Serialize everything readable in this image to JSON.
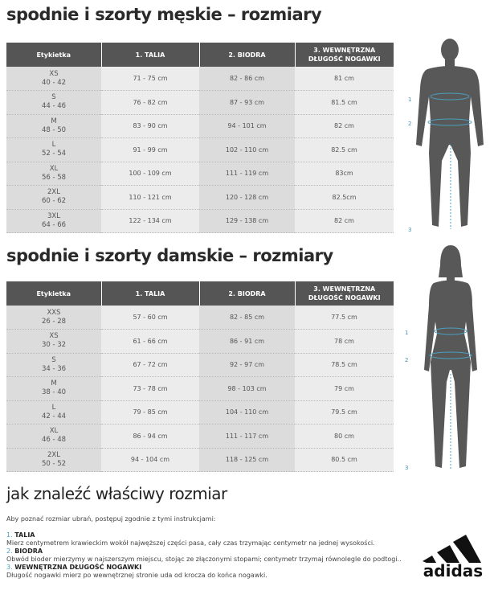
{
  "men": {
    "title": "spodnie i szorty męskie – rozmiary",
    "headers": [
      "Etykietka",
      "1. TALIA",
      "2. BIODRA",
      "3. WEWNĘTRZNA DŁUGOŚĆ NOGAWKI"
    ],
    "rows": [
      {
        "size": "XS",
        "eu": "40 - 42",
        "waist": "71 - 75 cm",
        "hips": "82 - 86 cm",
        "inseam": "81 cm"
      },
      {
        "size": "S",
        "eu": "44 - 46",
        "waist": "76 - 82 cm",
        "hips": "87 - 93 cm",
        "inseam": "81.5 cm"
      },
      {
        "size": "M",
        "eu": "48 - 50",
        "waist": "83 - 90 cm",
        "hips": "94 - 101 cm",
        "inseam": "82 cm"
      },
      {
        "size": "L",
        "eu": "52 - 54",
        "waist": "91 - 99 cm",
        "hips": "102 - 110 cm",
        "inseam": "82.5 cm"
      },
      {
        "size": "XL",
        "eu": "56 - 58",
        "waist": "100 - 109 cm",
        "hips": "111 - 119 cm",
        "inseam": "83cm"
      },
      {
        "size": "2XL",
        "eu": "60 - 62",
        "waist": "110 - 121 cm",
        "hips": "120 - 128 cm",
        "inseam": "82.5cm"
      },
      {
        "size": "3XL",
        "eu": "64 - 66",
        "waist": "122 - 134 cm",
        "hips": "129 - 138 cm",
        "inseam": "82 cm"
      }
    ]
  },
  "women": {
    "title": "spodnie i szorty damskie – rozmiary",
    "headers": [
      "Etykietka",
      "1. TALIA",
      "2. BIODRA",
      "3. WEWNĘTRZNA DŁUGOŚĆ NOGAWKI"
    ],
    "rows": [
      {
        "size": "XXS",
        "eu": "26 - 28",
        "waist": "57 - 60 cm",
        "hips": "82 - 85 cm",
        "inseam": "77.5 cm"
      },
      {
        "size": "XS",
        "eu": "30 - 32",
        "waist": "61 - 66 cm",
        "hips": "86 - 91 cm",
        "inseam": "78 cm"
      },
      {
        "size": "S",
        "eu": "34 - 36",
        "waist": "67 - 72 cm",
        "hips": "92 - 97 cm",
        "inseam": "78.5 cm"
      },
      {
        "size": "M",
        "eu": "38 - 40",
        "waist": "73 - 78 cm",
        "hips": "98 - 103 cm",
        "inseam": "79 cm"
      },
      {
        "size": "L",
        "eu": "42 - 44",
        "waist": "79 - 85 cm",
        "hips": "104 - 110 cm",
        "inseam": "79.5 cm"
      },
      {
        "size": "XL",
        "eu": "46 - 48",
        "waist": "86 - 94 cm",
        "hips": "111 - 117 cm",
        "inseam": "80 cm"
      },
      {
        "size": "2XL",
        "eu": "50 - 52",
        "waist": "94 - 104 cm",
        "hips": "118 - 125 cm",
        "inseam": "80.5 cm"
      }
    ]
  },
  "figure_labels": [
    "1",
    "2",
    "3"
  ],
  "guide": {
    "title": "jak znaleźć właściwy rozmiar",
    "intro": "Aby poznać rozmiar ubrań, postępuj zgodnie z tymi instrukcjami:",
    "steps": [
      {
        "num": "1.",
        "name": "TALIA",
        "text": "Mierz centymetrem krawieckim wokół najwęższej części pasa, cały czas trzymając centymetr na jednej wysokości."
      },
      {
        "num": "2.",
        "name": "BIODRA",
        "text": "Obwód bioder mierzymy w najszerszym miejscu, stojąc ze złączonymi stopami; centymetr trzymaj równolegle do podtogi.."
      },
      {
        "num": "3.",
        "name": "WEWNĘTRZNA DŁUGOŚĆ NOGAWKI",
        "text": "Długość nogawki mierz po wewnętrznej stronie uda od krocza do końca nogawki."
      }
    ]
  },
  "logo": {
    "text": "adidas"
  },
  "colors": {
    "header": "#555555",
    "accent": "#4a9fc0",
    "figure": "#555555"
  }
}
